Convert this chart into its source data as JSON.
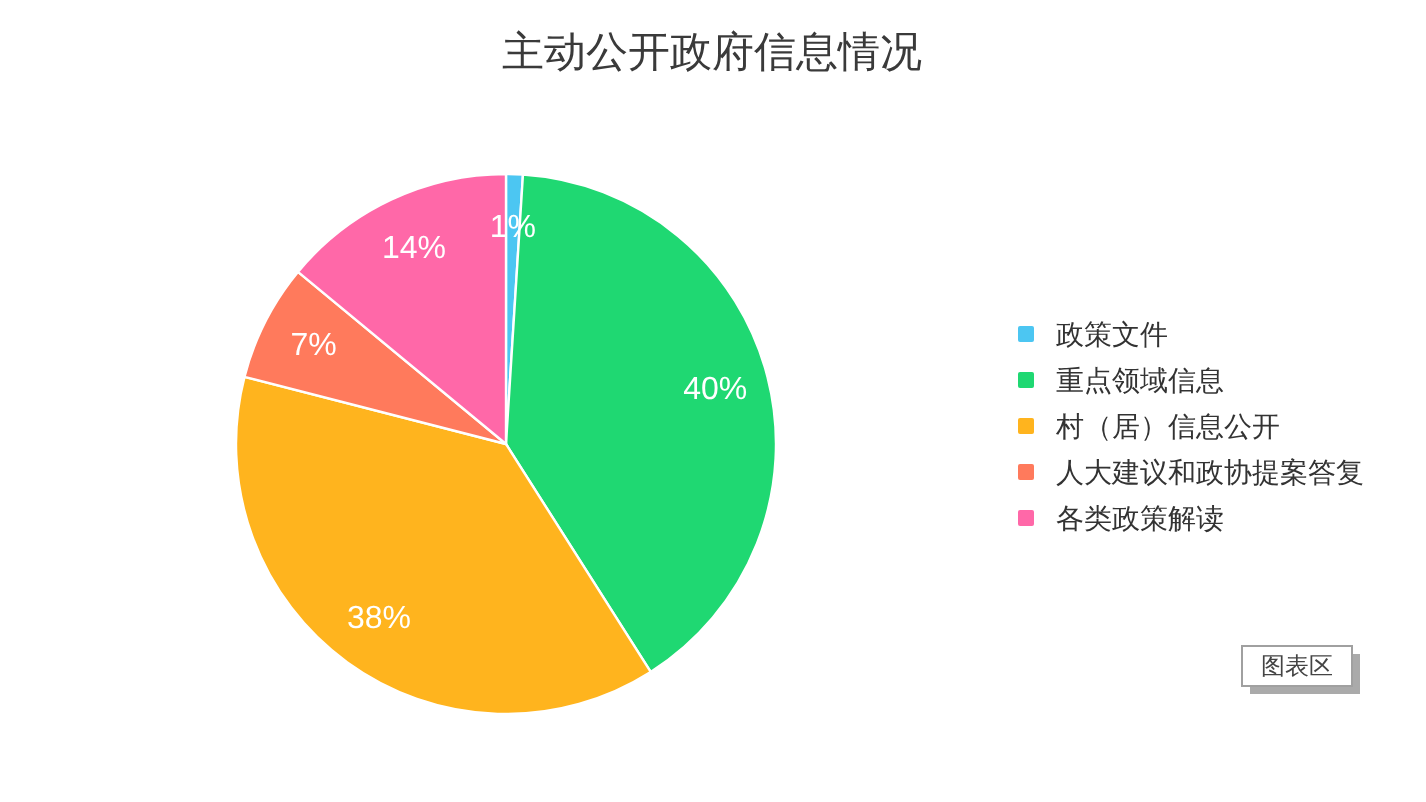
{
  "chart_data": {
    "type": "pie",
    "title": "主动公开政府信息情况",
    "categories": [
      "政策文件",
      "重点领域信息",
      "村（居）信息公开",
      "人大建议和政协提案答复",
      "各类政策解读"
    ],
    "values": [
      1,
      40,
      38,
      7,
      14
    ],
    "colors": [
      "#4cc6f2",
      "#1fd872",
      "#ffb41e",
      "#ff7a5c",
      "#ff68a8"
    ],
    "value_labels": [
      "1%",
      "40%",
      "38%",
      "7%",
      "14%"
    ],
    "legend": "right",
    "annotations": [
      "图表区"
    ]
  }
}
